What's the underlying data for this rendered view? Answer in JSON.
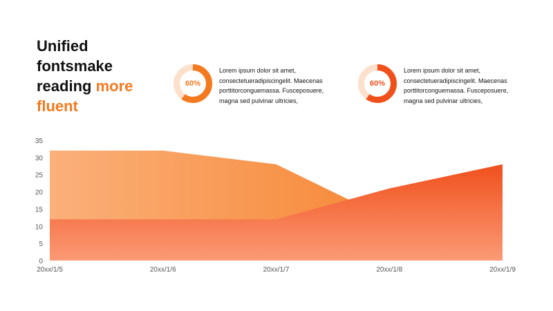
{
  "title": {
    "line1": "Unified",
    "line2": "fontsmake",
    "line3_plain": "reading ",
    "line3_accent": "more",
    "line4_accent": "fluent"
  },
  "stats": [
    {
      "percent_label": "60%",
      "percent": 60,
      "color": "#f47a1f",
      "track_color": "#fde0cc",
      "text": "Lorem ipsum dolor sit amet, consectetueradipiscingelit. Maecenas porttitorconguemassa. Fusceposuere, magna sed pulvinar ultricies,"
    },
    {
      "percent_label": "60%",
      "percent": 60,
      "color": "#f0501c",
      "track_color": "#fde0cc",
      "text": "Lorem ipsum dolor sit amet, consectetueradipiscingelit. Maecenas porttitorconguemassa. Fusceposuere, magna sed pulvinar ultricies,"
    }
  ],
  "chart_data": {
    "type": "area",
    "categories": [
      "20xx/1/5",
      "20xx/1/6",
      "20xx/1/7",
      "20xx/1/8",
      "20xx/1/9"
    ],
    "series": [
      {
        "values": [
          32,
          32,
          28,
          12,
          12
        ],
        "color_start": "#fbb07a",
        "color_end": "#f47a1f"
      },
      {
        "values": [
          12,
          12,
          12,
          21,
          28
        ],
        "color_start": "#f0501c",
        "color_end": "#fb9a75"
      }
    ],
    "ylim": [
      0,
      35
    ],
    "yticks": [
      0,
      5,
      10,
      15,
      20,
      25,
      30,
      35
    ],
    "grid": false,
    "legend": "none"
  }
}
